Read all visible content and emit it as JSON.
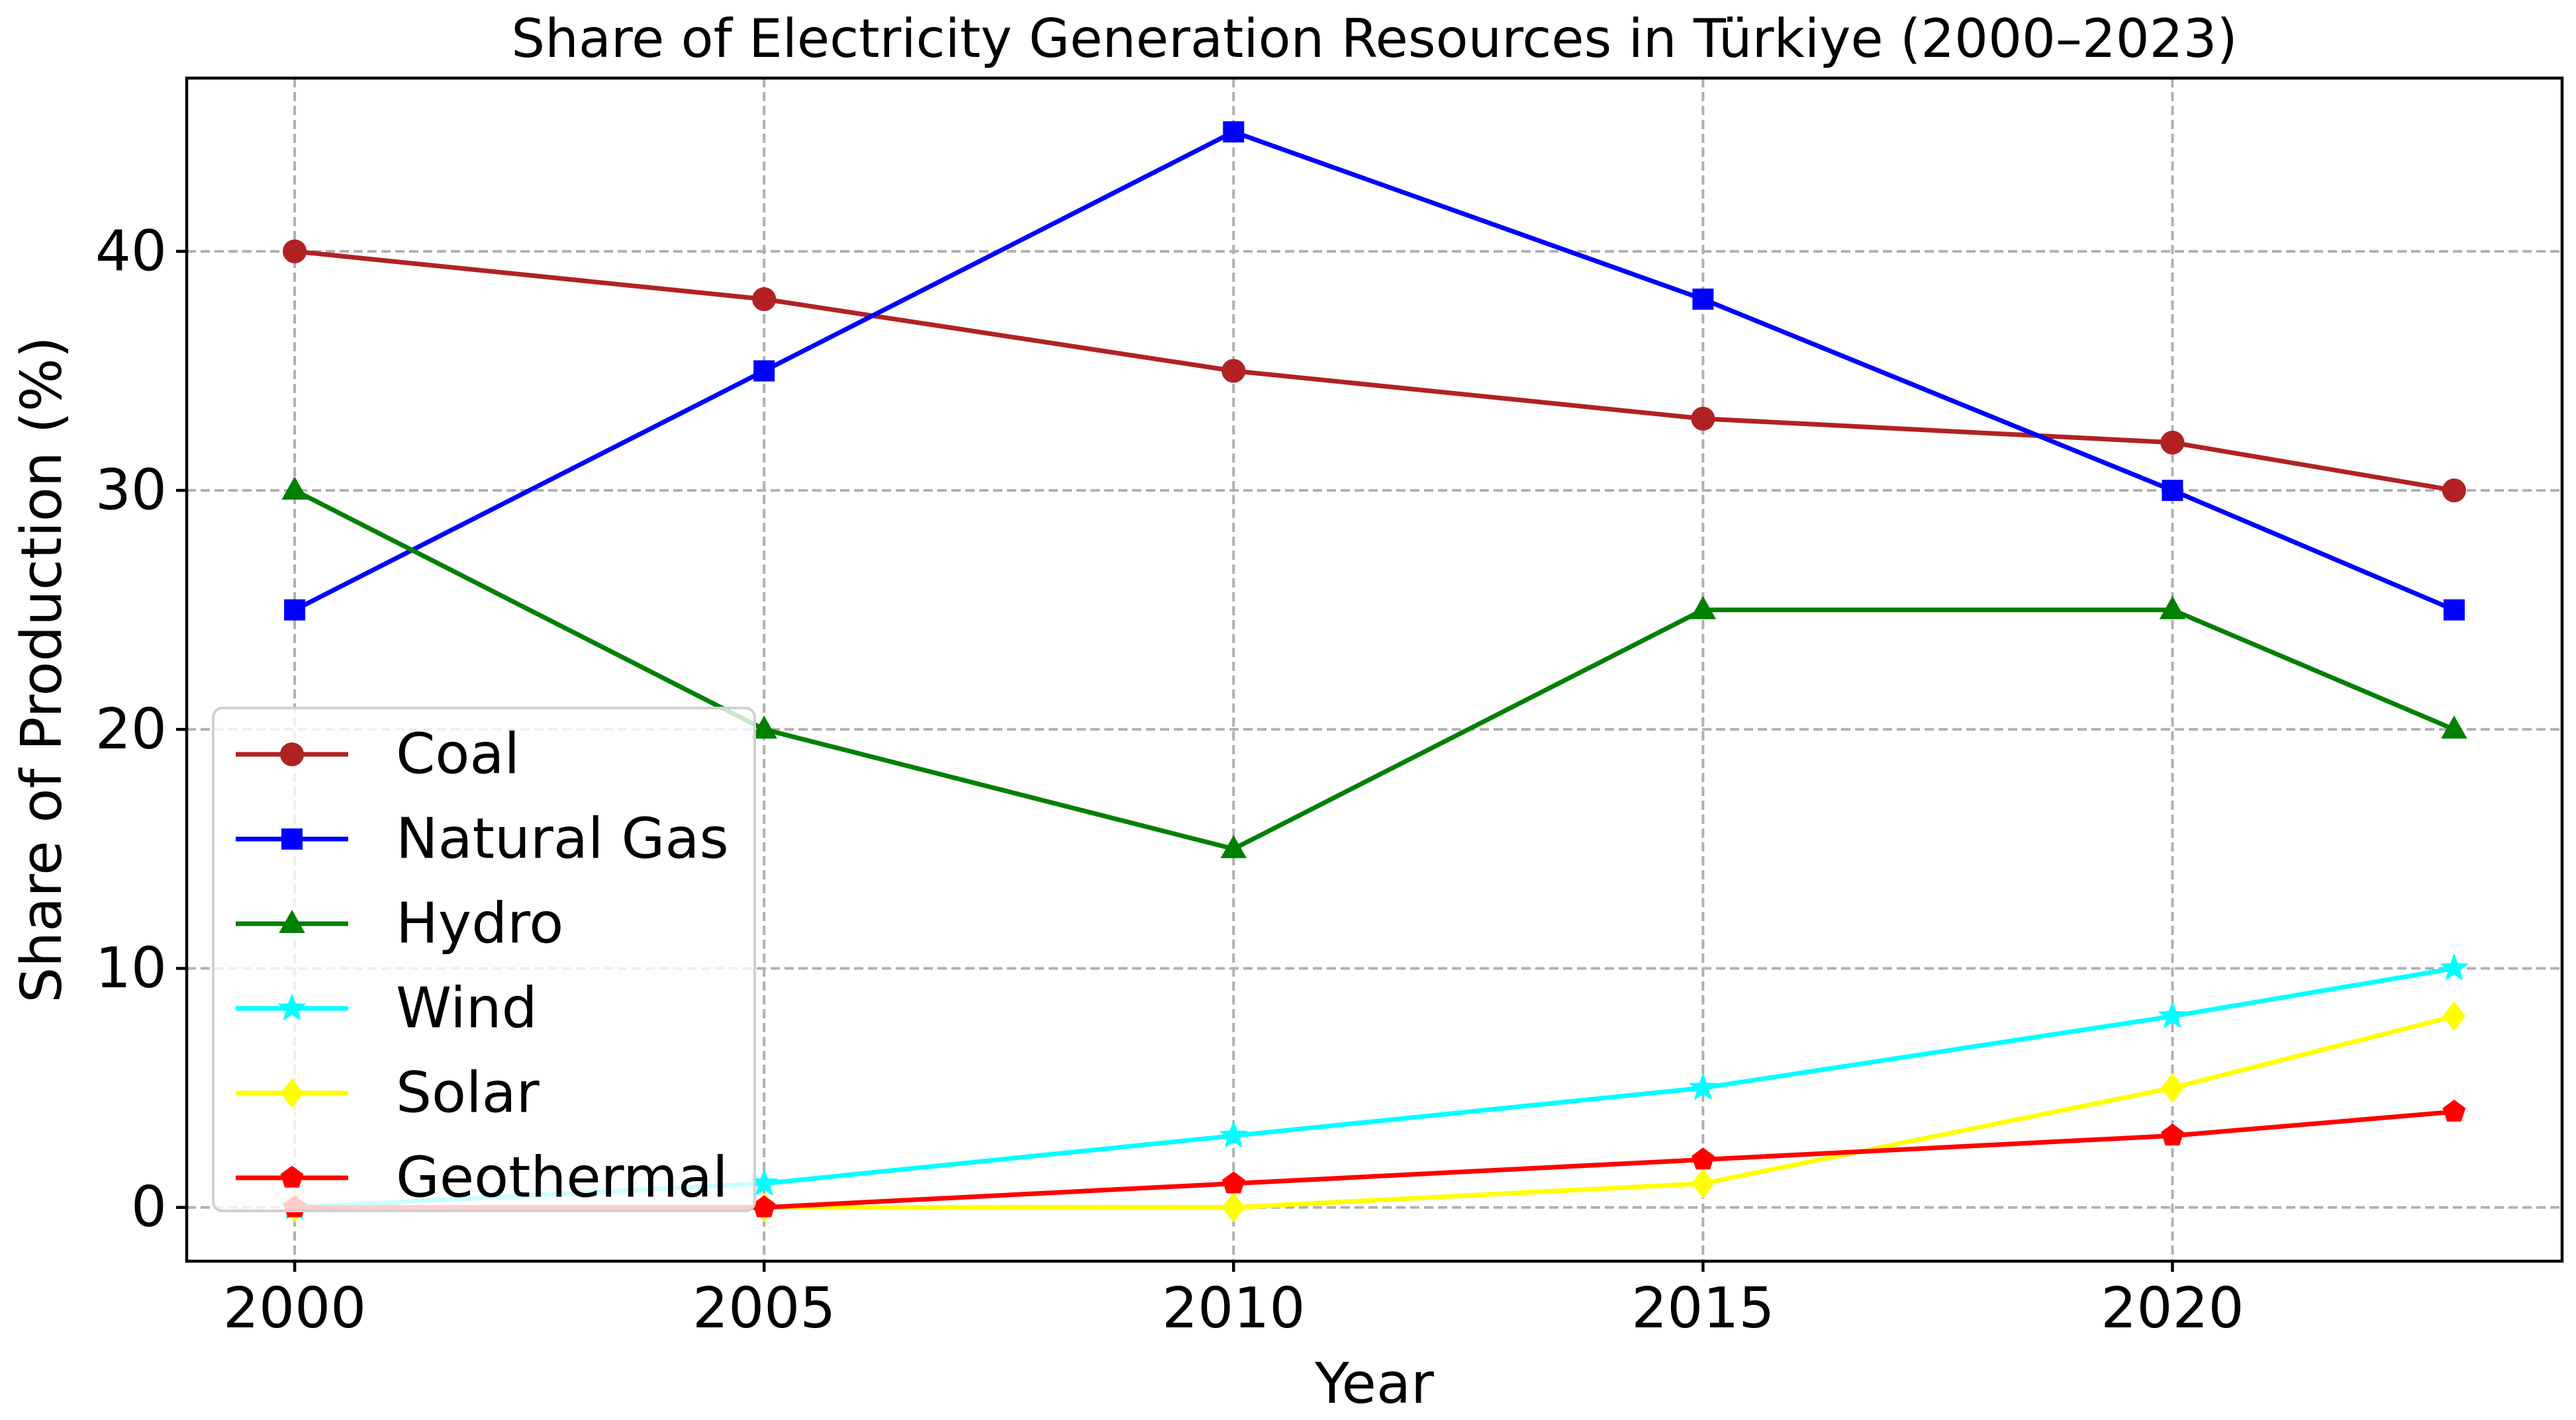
{
  "chart_data": {
    "type": "line",
    "title": "Share of Electricity Generation Resources in Türkiye (2000–2023)",
    "xlabel": "Year",
    "ylabel": "Share of Production (%)",
    "x": [
      2000,
      2005,
      2010,
      2015,
      2020,
      2023
    ],
    "xticks": [
      2000,
      2005,
      2010,
      2015,
      2020
    ],
    "yticks": [
      0,
      10,
      20,
      30,
      40
    ],
    "xlim": [
      1998.85,
      2024.15
    ],
    "ylim": [
      -2.25,
      47.25
    ],
    "grid": true,
    "legend_position": "lower-left",
    "series": [
      {
        "name": "Coal",
        "color": "#b22222",
        "marker": "circle",
        "values": [
          40,
          38,
          35,
          33,
          32,
          30
        ]
      },
      {
        "name": "Natural Gas",
        "color": "#0000ff",
        "marker": "square",
        "values": [
          25,
          35,
          45,
          38,
          30,
          25
        ]
      },
      {
        "name": "Hydro",
        "color": "#008000",
        "marker": "triangle",
        "values": [
          30,
          20,
          15,
          25,
          25,
          20
        ]
      },
      {
        "name": "Wind",
        "color": "#00ffff",
        "marker": "star",
        "values": [
          0,
          1,
          3,
          5,
          8,
          10
        ]
      },
      {
        "name": "Solar",
        "color": "#ffff00",
        "marker": "diamond",
        "values": [
          0,
          0,
          0,
          1,
          5,
          8
        ]
      },
      {
        "name": "Geothermal",
        "color": "#ff0000",
        "marker": "pentagon",
        "values": [
          0,
          0,
          1,
          2,
          3,
          4
        ]
      }
    ]
  }
}
